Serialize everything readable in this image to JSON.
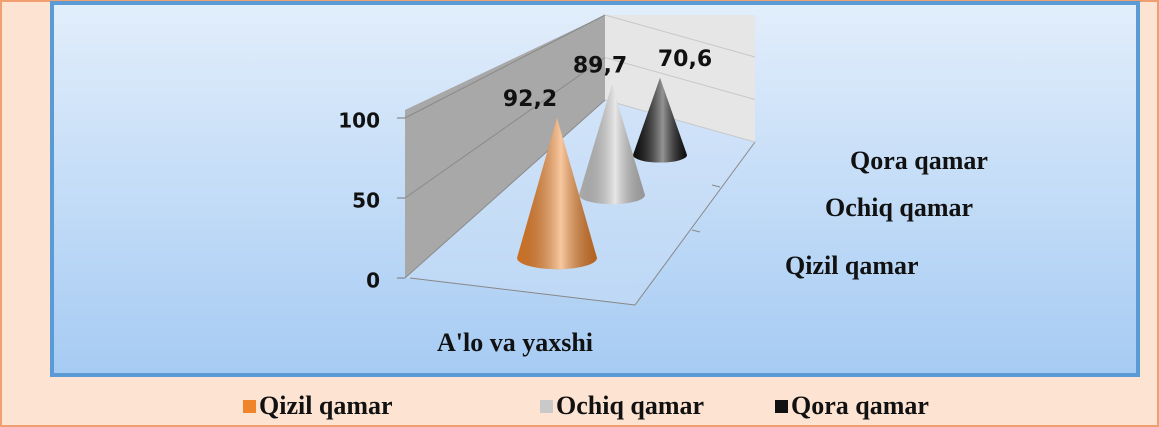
{
  "chart_data": {
    "type": "cone",
    "categories": [
      "A'lo va yaxshi"
    ],
    "series": [
      {
        "name": "Qizil qamar",
        "color": "#f0842a",
        "values": [
          92.2
        ],
        "value_labels": [
          "92,2"
        ]
      },
      {
        "name": "Ochiq qamar",
        "color": "#c9c9c9",
        "values": [
          89.7
        ],
        "value_labels": [
          "89,7"
        ]
      },
      {
        "name": "Qora qamar",
        "color": "#111111",
        "values": [
          70.6
        ],
        "value_labels": [
          "70,6"
        ]
      }
    ],
    "ylim": [
      0,
      100
    ],
    "yticks": [
      0,
      50,
      100
    ],
    "grid": true,
    "legend": "bottom"
  }
}
